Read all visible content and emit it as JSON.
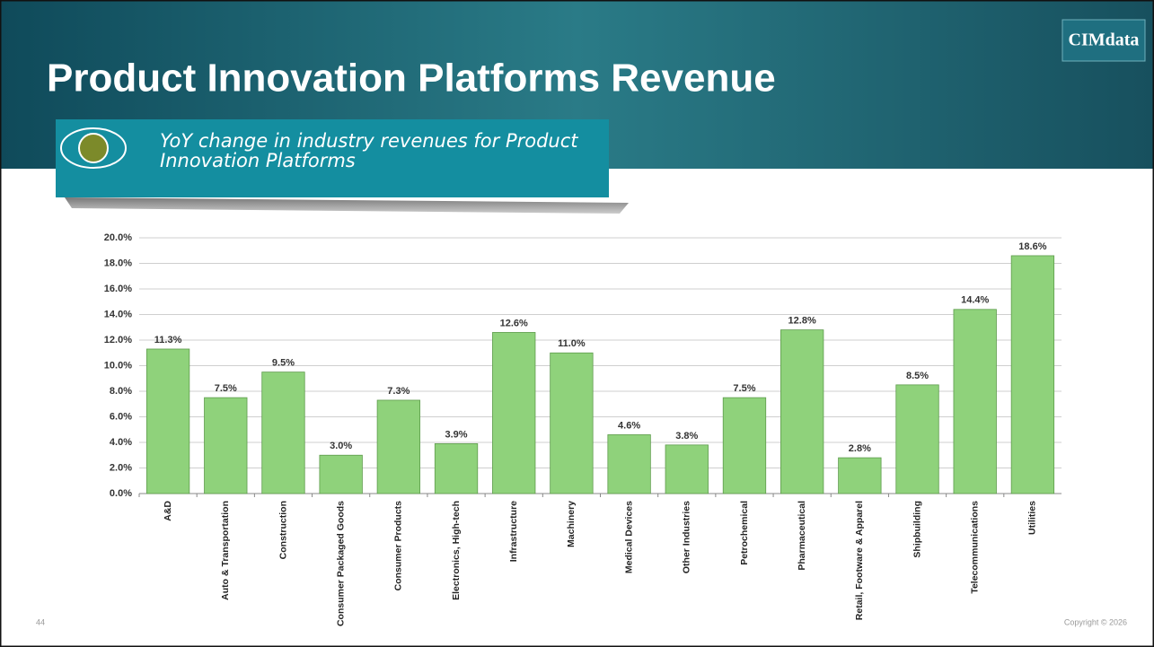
{
  "slide": {
    "title": "Product Innovation Platforms Revenue",
    "subtitle": "YoY change in industry revenues for Product Innovation Platforms",
    "logo": "CIMdata",
    "page_number": "44",
    "copyright": "Copyright © 2026"
  },
  "chart_data": {
    "type": "bar",
    "categories": [
      "A&D",
      "Auto & Transportation",
      "Construction",
      "Consumer Packaged Goods",
      "Consumer Products",
      "Electronics, High-tech",
      "Infrastructure",
      "Machinery",
      "Medical Devices",
      "Other Industries",
      "Petrochemical",
      "Pharmaceutical",
      "Retail, Footware & Apparel",
      "Shipbuilding",
      "Telecommunications",
      "Utilities"
    ],
    "values": [
      11.3,
      7.5,
      9.5,
      3.0,
      7.3,
      3.9,
      12.6,
      11.0,
      4.6,
      3.8,
      7.5,
      12.8,
      2.8,
      8.5,
      14.4,
      18.6
    ],
    "value_labels": [
      "11.3%",
      "7.5%",
      "9.5%",
      "3.0%",
      "7.3%",
      "3.9%",
      "12.6%",
      "11.0%",
      "4.6%",
      "3.8%",
      "7.5%",
      "12.8%",
      "2.8%",
      "8.5%",
      "14.4%",
      "18.6%"
    ],
    "color": "#8fd27b",
    "ylim": [
      0,
      20
    ],
    "yticks": [
      {
        "value": 0,
        "label": "0.0%"
      },
      {
        "value": 2,
        "label": "2.0%"
      },
      {
        "value": 4,
        "label": "4.0%"
      },
      {
        "value": 6,
        "label": "6.0%"
      },
      {
        "value": 8,
        "label": "8.0%"
      },
      {
        "value": 10,
        "label": "10.0%"
      },
      {
        "value": 12,
        "label": "12.0%"
      },
      {
        "value": 14,
        "label": "14.0%"
      },
      {
        "value": 16,
        "label": "16.0%"
      },
      {
        "value": 18,
        "label": "18.0%"
      },
      {
        "value": 20,
        "label": "20.0%"
      }
    ],
    "grid": true
  }
}
